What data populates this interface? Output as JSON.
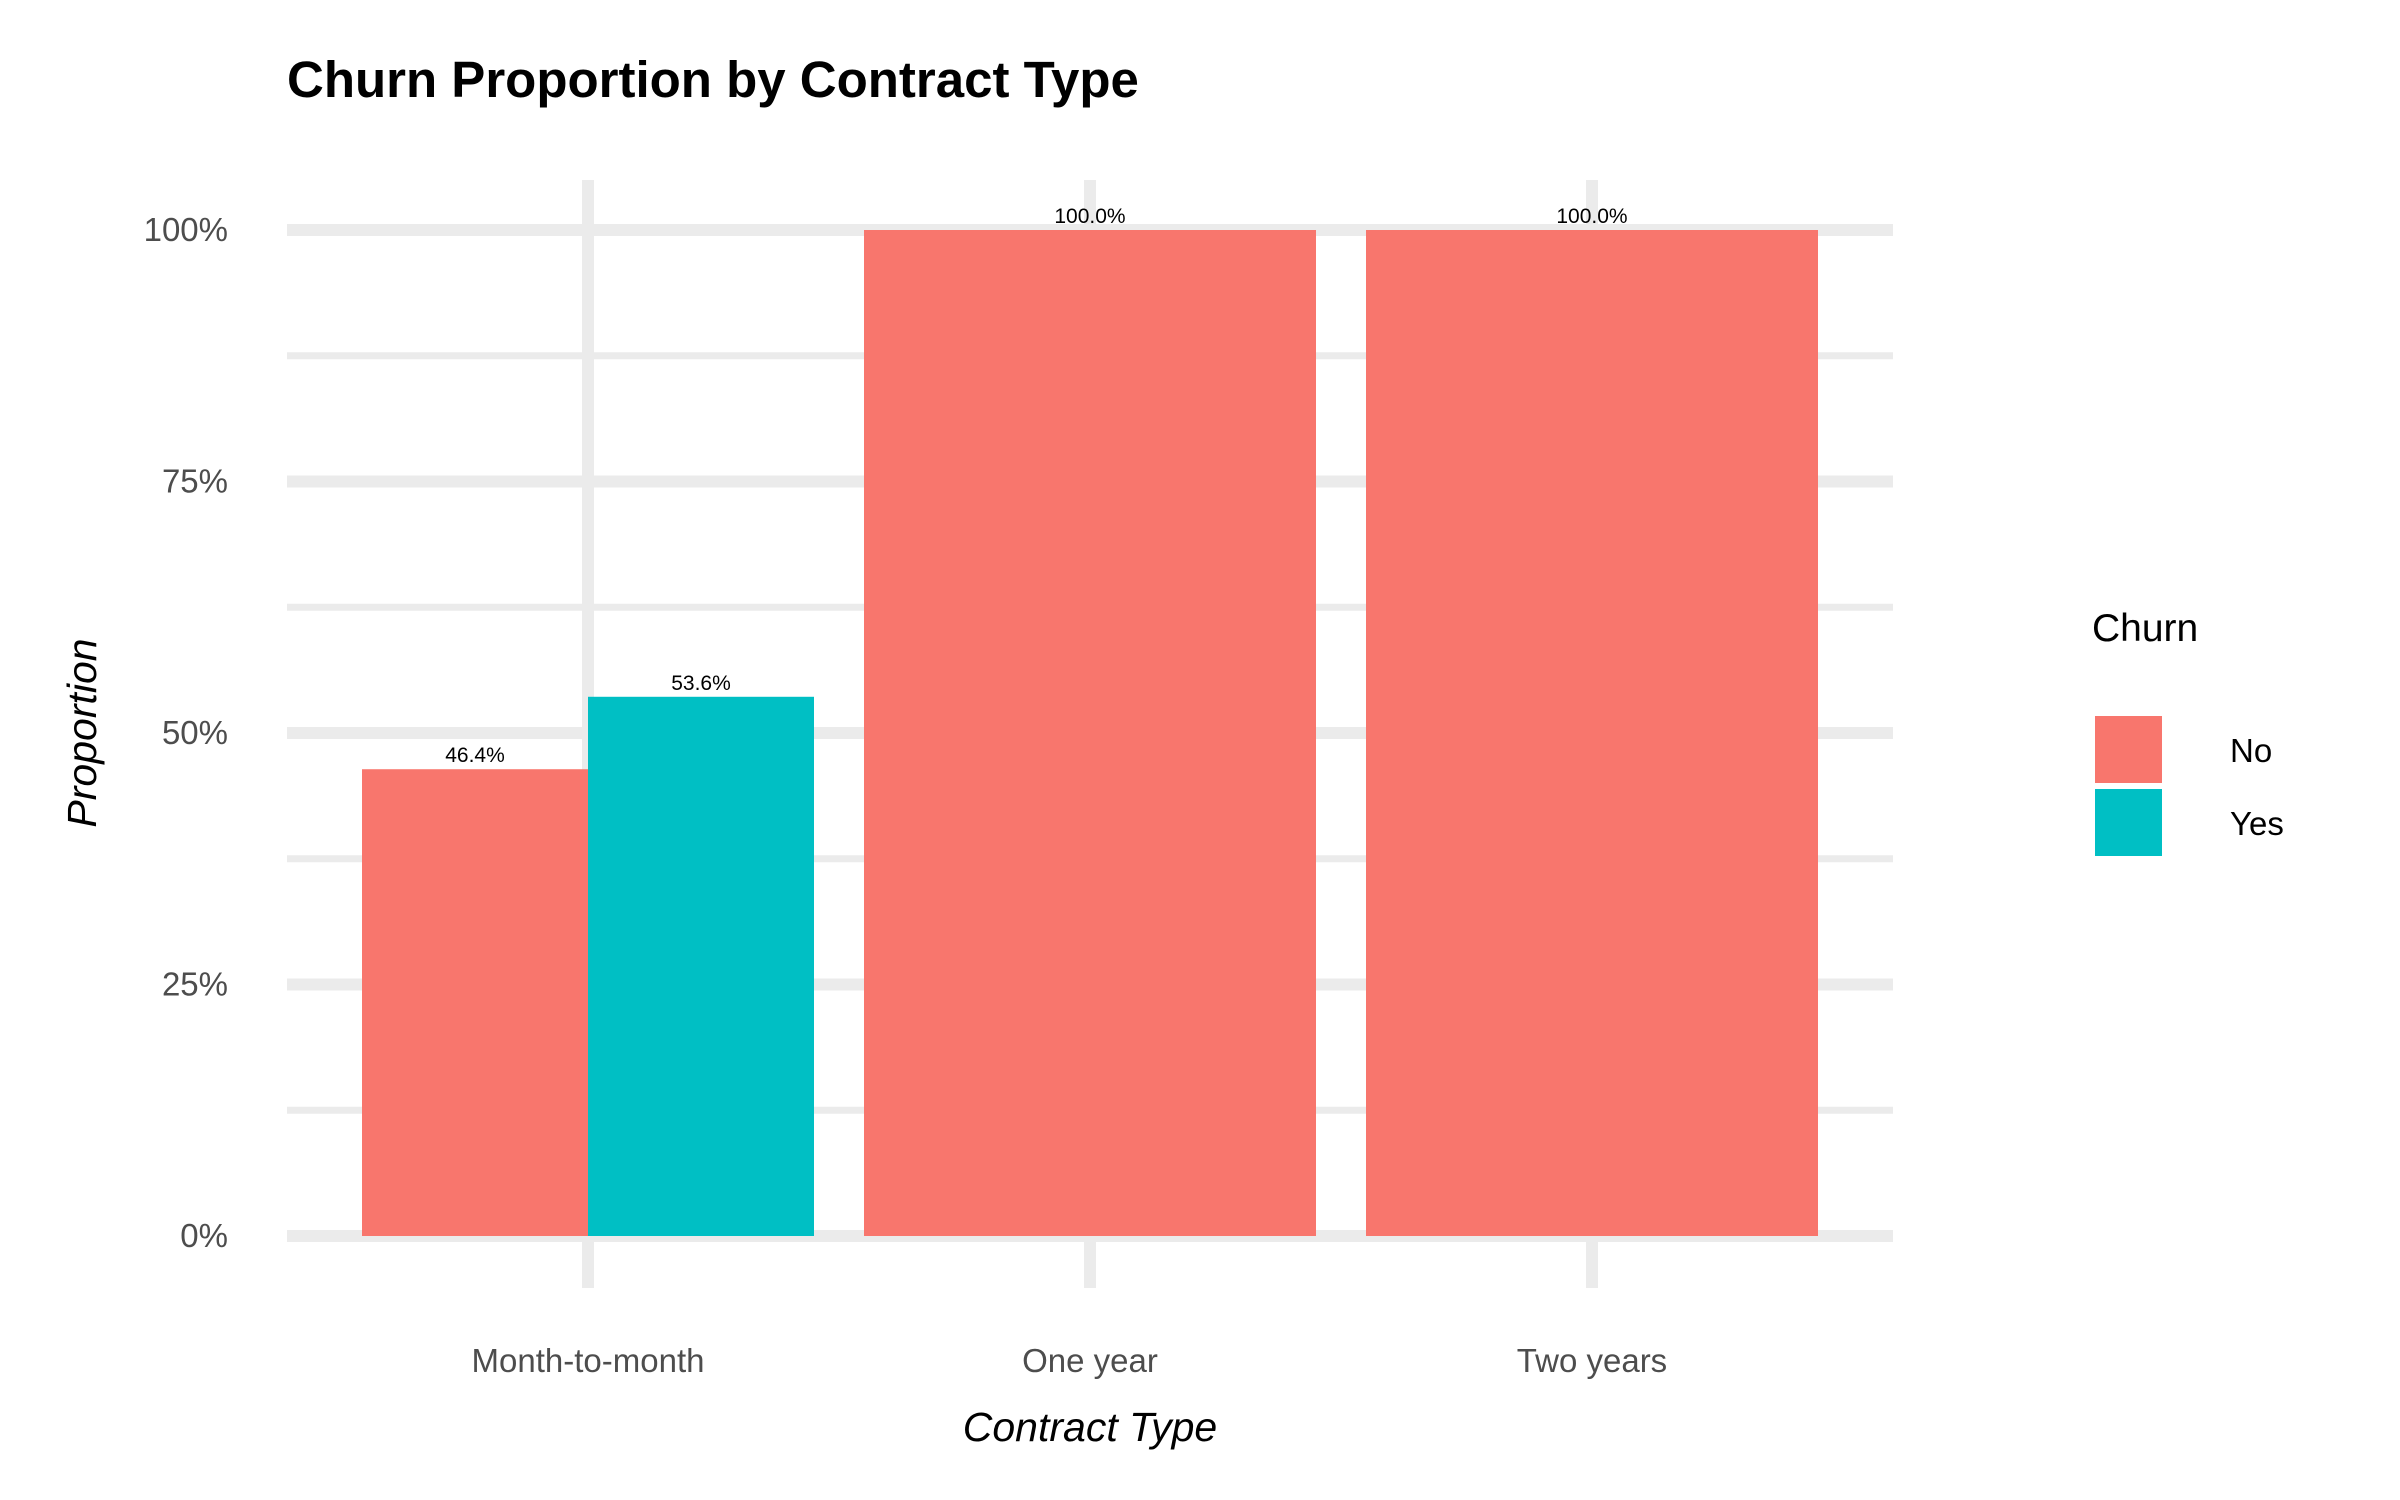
{
  "chart_data": {
    "type": "bar",
    "title": "Churn Proportion by Contract Type",
    "xlabel": "Contract Type",
    "ylabel": "Proportion",
    "categories": [
      "Month-to-month",
      "One year",
      "Two years"
    ],
    "series": [
      {
        "name": "No",
        "color": "#F8766D",
        "values": [
          0.464,
          1.0,
          1.0
        ]
      },
      {
        "name": "Yes",
        "color": "#00BFC4",
        "values": [
          0.536,
          null,
          null
        ]
      }
    ],
    "data_labels": [
      [
        "46.4%",
        "100.0%",
        "100.0%"
      ],
      [
        "53.6%",
        null,
        null
      ]
    ],
    "yticks": [
      0,
      0.25,
      0.5,
      0.75,
      1.0
    ],
    "ytick_labels": [
      "0%",
      "25%",
      "50%",
      "75%",
      "100%"
    ],
    "ylim": [
      0,
      1.0
    ],
    "grid": true,
    "legend": {
      "title": "Churn",
      "position": "right",
      "entries": [
        "No",
        "Yes"
      ]
    }
  }
}
